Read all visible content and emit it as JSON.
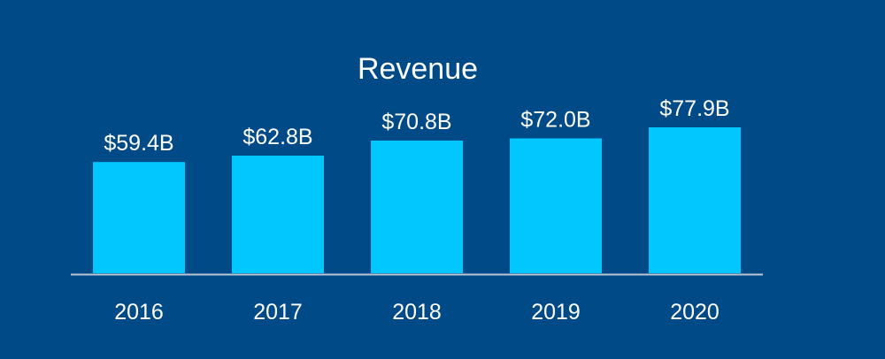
{
  "colors": {
    "background": "#004a87",
    "bar": "#00c8ff",
    "axis": "#b9c7d6",
    "text": "#ffffff"
  },
  "chart_data": {
    "type": "bar",
    "title": "Revenue",
    "xlabel": "",
    "ylabel": "",
    "categories": [
      "2016",
      "2017",
      "2018",
      "2019",
      "2020"
    ],
    "values": [
      59.4,
      62.8,
      70.8,
      72.0,
      77.9
    ],
    "value_labels": [
      "$59.4B",
      "$62.8B",
      "$70.8B",
      "$72.0B",
      "$77.9B"
    ],
    "unit": "B USD",
    "ylim": [
      0,
      77.9
    ],
    "grid": false,
    "legend": "none"
  }
}
